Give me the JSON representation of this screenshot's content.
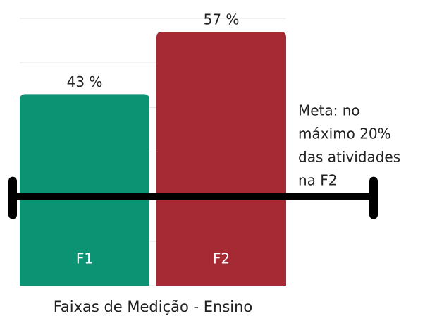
{
  "chart_data": {
    "type": "bar",
    "categories": [
      "F1",
      "F2"
    ],
    "values": [
      43,
      57
    ],
    "value_labels": [
      "43 %",
      "57 %"
    ],
    "colors": [
      "#0c9373",
      "#a52a33"
    ],
    "ylim": [
      0,
      60
    ],
    "yticks": [
      0,
      10,
      20,
      30,
      40,
      50,
      60
    ],
    "grid": true,
    "target": 20,
    "annotation": [
      "Meta: no",
      "máximo 20%",
      "das atividades",
      "na F2"
    ],
    "xlabel": "Faixas de Medição - Ensino"
  }
}
